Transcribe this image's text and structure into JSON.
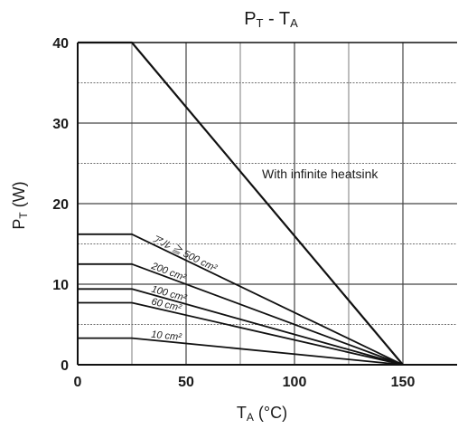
{
  "chart_data": {
    "type": "line",
    "title_main": "P",
    "title_main_sub": "T",
    "title_sep": " - ",
    "title_second": "T",
    "title_second_sub": "A",
    "ylabel_main": "P",
    "ylabel_sub": "T",
    "ylabel_unit": " (W)",
    "xlabel_main": "T",
    "xlabel_sub": "A",
    "xlabel_unit": " (°C)",
    "xlim": [
      0,
      175
    ],
    "ylim": [
      0,
      40
    ],
    "x_ticks": [
      0,
      50,
      100,
      150
    ],
    "y_ticks": [
      0,
      10,
      20,
      30,
      40
    ],
    "grid": true,
    "annotation": "With infinite heatsink",
    "series": [
      {
        "label": "",
        "points": [
          [
            0,
            40
          ],
          [
            25,
            40
          ],
          [
            150,
            0
          ]
        ]
      },
      {
        "label": "アル ≧ 500 cm²",
        "points": [
          [
            0,
            16.2
          ],
          [
            25,
            16.2
          ],
          [
            150,
            0
          ]
        ]
      },
      {
        "label": "200 cm²",
        "points": [
          [
            0,
            12.5
          ],
          [
            25,
            12.5
          ],
          [
            150,
            0
          ]
        ]
      },
      {
        "label": "100 cm²",
        "points": [
          [
            0,
            9.4
          ],
          [
            25,
            9.4
          ],
          [
            150,
            0
          ]
        ]
      },
      {
        "label": "60 cm²",
        "points": [
          [
            0,
            7.7
          ],
          [
            25,
            7.7
          ],
          [
            150,
            0
          ]
        ]
      },
      {
        "label": "10 cm²",
        "points": [
          [
            0,
            3.3
          ],
          [
            25,
            3.3
          ],
          [
            150,
            0
          ]
        ]
      }
    ]
  }
}
